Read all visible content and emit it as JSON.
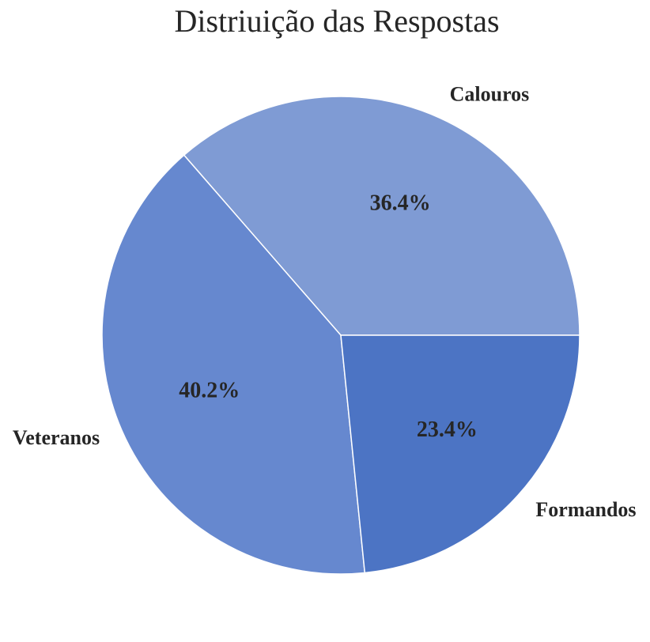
{
  "chart_data": {
    "type": "pie",
    "title": "Distriuição das Respostas",
    "start_angle_deg": 0,
    "direction": "counterclockwise",
    "slices": [
      {
        "label": "Calouros",
        "value": 36.4,
        "pct_text": "36.4%",
        "color": "#7f9bd4"
      },
      {
        "label": "Veteranos",
        "value": 40.2,
        "pct_text": "40.2%",
        "color": "#6688cf"
      },
      {
        "label": "Formandos",
        "value": 23.4,
        "pct_text": "23.4%",
        "color": "#4c74c4"
      }
    ]
  }
}
